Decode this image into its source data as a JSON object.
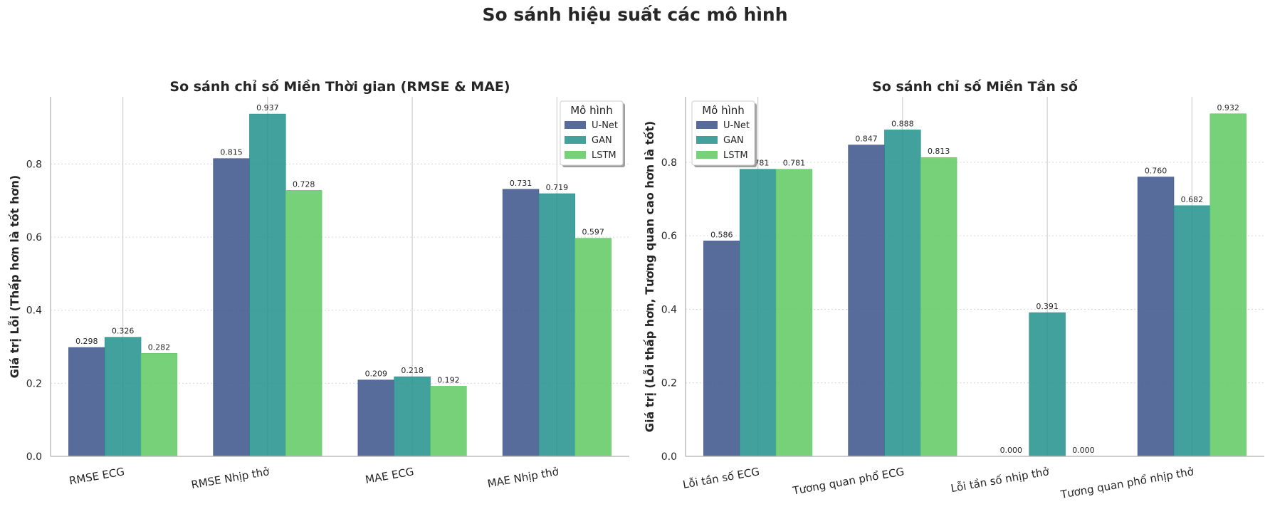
{
  "suptitle": "So sánh hiệu suất các mô hình",
  "colors": {
    "U-Net": "#3b528b",
    "GAN": "#21918c",
    "LSTM": "#5ec962"
  },
  "chart_data": [
    {
      "type": "bar",
      "title": "So sánh chỉ số Miền Thời gian (RMSE & MAE)",
      "xlabel": "",
      "ylabel": "Giá trị Lỗi (Thấp hơn là tốt hơn)",
      "categories": [
        "RMSE ECG",
        "RMSE Nhịp thở",
        "MAE ECG",
        "MAE Nhịp thở"
      ],
      "series": [
        {
          "name": "U-Net",
          "values": [
            0.298,
            0.815,
            0.209,
            0.731
          ]
        },
        {
          "name": "GAN",
          "values": [
            0.326,
            0.937,
            0.218,
            0.719
          ]
        },
        {
          "name": "LSTM",
          "values": [
            0.282,
            0.728,
            0.192,
            0.597
          ]
        }
      ],
      "data_labels": [
        [
          "0.298",
          "0.815",
          "0.209",
          "0.731"
        ],
        [
          "0.326",
          "0.937",
          "0.218",
          "0.719"
        ],
        [
          "0.282",
          "0.728",
          "0.192",
          "0.597"
        ]
      ],
      "ylim": [
        0,
        0.984
      ],
      "yticks": [
        0.0,
        0.2,
        0.4,
        0.6,
        0.8
      ],
      "ytick_labels": [
        "0.0",
        "0.2",
        "0.4",
        "0.6",
        "0.8"
      ],
      "legend": {
        "title": "Mô hình",
        "position": "upper right"
      },
      "grid": "y dotted, x solid"
    },
    {
      "type": "bar",
      "title": "So sánh chỉ số Miền Tần số",
      "xlabel": "",
      "ylabel": "Giá trị (Lỗi thấp hơn, Tương quan cao hơn là tốt)",
      "categories": [
        "Lỗi tần số ECG",
        "Tương quan phổ ECG",
        "Lỗi tần số nhịp thở",
        "Tương quan phổ nhịp thở"
      ],
      "series": [
        {
          "name": "U-Net",
          "values": [
            0.586,
            0.847,
            0.0,
            0.76
          ]
        },
        {
          "name": "GAN",
          "values": [
            0.781,
            0.888,
            0.391,
            0.682
          ]
        },
        {
          "name": "LSTM",
          "values": [
            0.781,
            0.813,
            0.0,
            0.932
          ]
        }
      ],
      "data_labels": [
        [
          "0.586",
          "0.847",
          "0.000",
          "0.760"
        ],
        [
          "0.781",
          "0.888",
          "0.391",
          "0.682"
        ],
        [
          "0.781",
          "0.813",
          "0.000",
          "0.932"
        ]
      ],
      "ylim": [
        0,
        0.978
      ],
      "yticks": [
        0.0,
        0.2,
        0.4,
        0.6,
        0.8
      ],
      "ytick_labels": [
        "0.0",
        "0.2",
        "0.4",
        "0.6",
        "0.8"
      ],
      "legend": {
        "title": "Mô hình",
        "position": "upper left"
      },
      "grid": "y dotted, x solid"
    }
  ]
}
